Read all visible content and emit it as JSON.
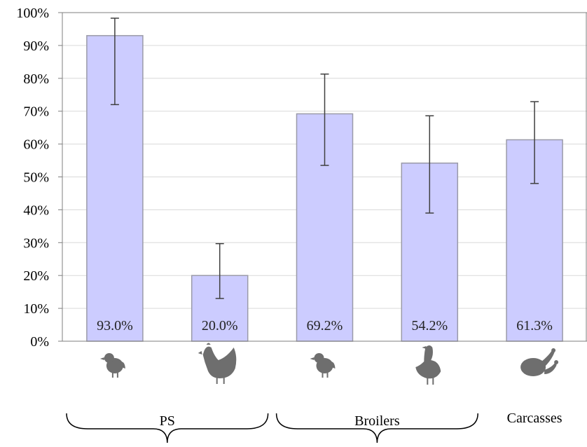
{
  "chart_data": {
    "type": "bar",
    "title": "",
    "xlabel": "",
    "ylabel": "",
    "ylim": [
      0,
      100
    ],
    "yticks": [
      0,
      10,
      20,
      30,
      40,
      50,
      60,
      70,
      80,
      90,
      100
    ],
    "ytick_labels": [
      "0%",
      "10%",
      "20%",
      "30%",
      "40%",
      "50%",
      "60%",
      "70%",
      "80%",
      "90%",
      "100%"
    ],
    "grid": true,
    "values": [
      93.0,
      20.0,
      69.2,
      54.2,
      61.3
    ],
    "labels": [
      "93.0%",
      "20.0%",
      "69.2%",
      "54.2%",
      "61.3%"
    ],
    "error_low": [
      72.0,
      13.0,
      53.5,
      39.0,
      48.0
    ],
    "error_high": [
      98.3,
      29.7,
      81.3,
      68.6,
      72.9
    ],
    "category_icons": [
      "chick-icon",
      "hen-icon",
      "chick-icon",
      "broiler-icon",
      "carcass-icon"
    ],
    "groups": [
      {
        "label": "PS",
        "categories": [
          0,
          1
        ],
        "brace": true
      },
      {
        "label": "Broilers",
        "categories": [
          2,
          3
        ],
        "brace": true
      },
      {
        "label": "Carcasses",
        "categories": [
          4
        ],
        "brace": false
      }
    ],
    "colors": {
      "bar_fill": "#ccccff",
      "bar_stroke": "#9a9aa8",
      "grid": "#d9d9d9",
      "axis": "#7f7f7f",
      "error_bar": "#404040",
      "icon": "#6e6e6e"
    }
  }
}
